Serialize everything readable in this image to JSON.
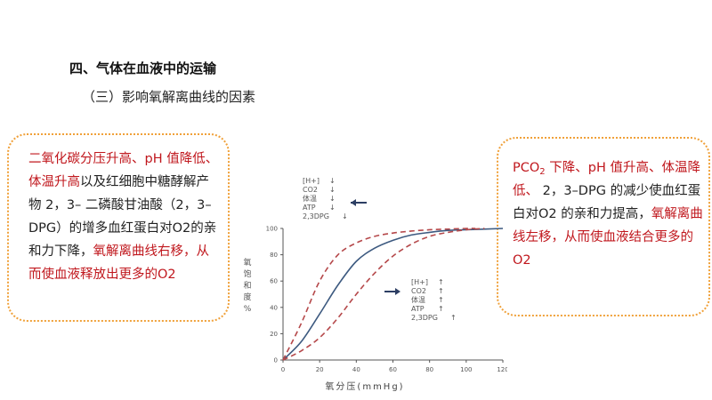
{
  "heading": "四、气体在血液中的运输",
  "subheading": "（三）影响氧解离曲线的因素",
  "left_box": {
    "part1_red": "二氧化碳分压升高、pH 值降低、",
    "part2_red": "体温升高",
    "part3": "以及红细胞中糖酵解产物 2，3– 二磷酸甘油酸（2，3–DPG）的增多血红蛋白对O2的亲和力下降，",
    "part4_red": "氧解离曲线右移，从而使血液释放出更多的O2"
  },
  "right_box": {
    "part1_red_pre": "PCO",
    "part1_red_sub": "2",
    "part1_red_post": " 下降、pH 值升高、体温降低、",
    "part2": " 2，3–DPG 的减少使血红蛋白对O2 的亲和力提高，",
    "part3_red": "氧解离曲线左移，从而使血液结合更多的O2"
  },
  "chart": {
    "ylabel": "氧饱和度%",
    "xlabel": "氧分压(mmHg)",
    "legend_top": [
      "[H+]",
      "CO2",
      "体温",
      "ATP",
      "2,3DPG"
    ],
    "legend_bottom": [
      "[H+]",
      "CO2",
      "体温",
      "ATP",
      "2,3DPG"
    ],
    "arrow_down": "↓",
    "arrow_up": "↑"
  },
  "colors": {
    "red_text": "#c0171d",
    "box_border": "#f0a13a",
    "curve_main": "#3d5a80",
    "curve_shift": "#b5484a"
  },
  "chart_data": {
    "type": "line",
    "x_ticks": [
      "0",
      "20",
      "40",
      "60",
      "80",
      "100",
      "120"
    ],
    "y_ticks": [
      "0",
      "20",
      "40",
      "60",
      "80",
      "100"
    ],
    "xlim": [
      0,
      120
    ],
    "ylim": [
      0,
      100
    ],
    "series": [
      {
        "style": "solid",
        "x": [
          0,
          10,
          20,
          30,
          40,
          50,
          60,
          70,
          80,
          90,
          100,
          120
        ],
        "y": [
          0,
          14,
          35,
          57,
          75,
          85,
          91,
          95,
          97,
          98.5,
          99,
          100
        ]
      },
      {
        "style": "dashed",
        "x": [
          0,
          10,
          20,
          30,
          40,
          50,
          60,
          70,
          80,
          90,
          100,
          105
        ],
        "y": [
          0,
          28,
          60,
          80,
          89,
          94,
          96.5,
          98,
          99,
          99.5,
          100,
          100
        ]
      },
      {
        "style": "dashed",
        "x": [
          0,
          10,
          20,
          30,
          40,
          50,
          60,
          70,
          80,
          90,
          100,
          110
        ],
        "y": [
          0,
          7,
          17,
          32,
          50,
          66,
          79,
          88,
          94,
          97,
          99,
          100
        ]
      }
    ]
  }
}
